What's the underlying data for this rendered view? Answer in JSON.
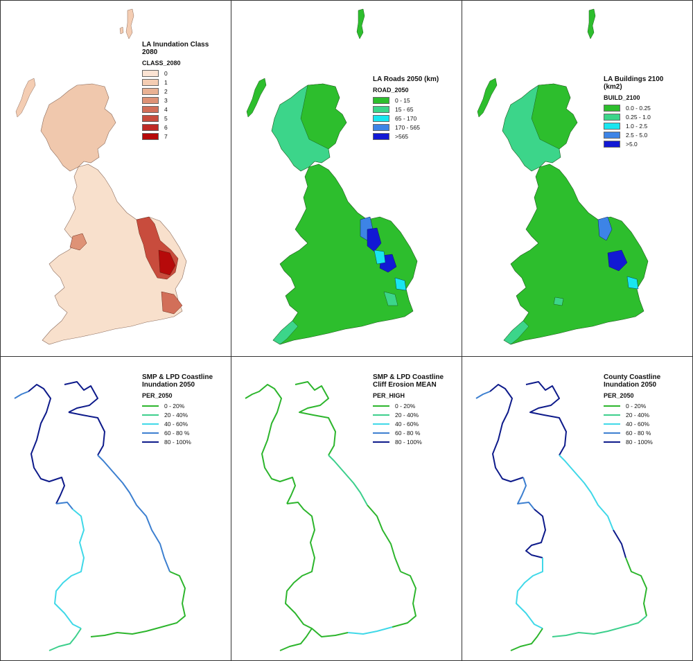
{
  "panels": [
    {
      "id": "la_inundation",
      "title": "LA Inundation Class\n2080",
      "field": "CLASS_2080",
      "legend_type": "fill",
      "items": [
        {
          "label": "0",
          "color": "#fbe3d3"
        },
        {
          "label": "1",
          "color": "#f4cdb3"
        },
        {
          "label": "2",
          "color": "#e9b294"
        },
        {
          "label": "3",
          "color": "#de9276"
        },
        {
          "label": "4",
          "color": "#d26f59"
        },
        {
          "label": "5",
          "color": "#c84c3d"
        },
        {
          "label": "6",
          "color": "#bf2a25"
        },
        {
          "label": "7",
          "color": "#b60a0a"
        }
      ]
    },
    {
      "id": "la_roads",
      "title": "LA Roads 2050 (km)",
      "field": "ROAD_2050",
      "legend_type": "fill",
      "items": [
        {
          "label": "0 - 15",
          "color": "#2dbe2d"
        },
        {
          "label": "15 - 65",
          "color": "#3cd58a"
        },
        {
          "label": "65 - 170",
          "color": "#19e6f0"
        },
        {
          "label": "170 - 565",
          "color": "#3d84e6"
        },
        {
          "label": ">565",
          "color": "#1219d4"
        }
      ]
    },
    {
      "id": "la_buildings",
      "title": "LA Buildings 2100\n(km2)",
      "field": "BUILD_2100",
      "legend_type": "fill",
      "items": [
        {
          "label": "0.0 - 0.25",
          "color": "#2dbe2d"
        },
        {
          "label": "0.25 - 1.0",
          "color": "#3cd58a"
        },
        {
          "label": "1.0 - 2.5",
          "color": "#19e6f0"
        },
        {
          "label": "2.5 - 5.0",
          "color": "#3d84e6"
        },
        {
          "label": ">5.0",
          "color": "#1219d4"
        }
      ]
    },
    {
      "id": "smp_inundation",
      "title": "SMP & LPD Coastline\nInundation 2050",
      "field": "PER_2050",
      "legend_type": "line",
      "items": [
        {
          "label": "0 - 20%",
          "color": "#2cb52c"
        },
        {
          "label": "20 - 40%",
          "color": "#3ccf8c"
        },
        {
          "label": "40 - 60%",
          "color": "#3fd8e8"
        },
        {
          "label": "60 - 80 %",
          "color": "#3c7fd0"
        },
        {
          "label": "80 - 100%",
          "color": "#0d1a8a"
        }
      ]
    },
    {
      "id": "smp_erosion",
      "title": "SMP & LPD Coastline\nCliff Erosion MEAN",
      "field": "PER_HIGH",
      "legend_type": "line",
      "items": [
        {
          "label": "0 - 20%",
          "color": "#2cb52c"
        },
        {
          "label": "20 - 40%",
          "color": "#3ccf8c"
        },
        {
          "label": "40 - 60%",
          "color": "#3fd8e8"
        },
        {
          "label": "60 - 80 %",
          "color": "#3c7fd0"
        },
        {
          "label": "80 - 100%",
          "color": "#0d1a8a"
        }
      ]
    },
    {
      "id": "county_inundation",
      "title": "County Coastline\nInundation 2050",
      "field": "PER_2050",
      "legend_type": "line",
      "items": [
        {
          "label": "0 - 20%",
          "color": "#2cb52c"
        },
        {
          "label": "20 - 40%",
          "color": "#3ccf8c"
        },
        {
          "label": "40 - 60%",
          "color": "#3fd8e8"
        },
        {
          "label": "60 - 80 %",
          "color": "#3c7fd0"
        },
        {
          "label": "80 - 100%",
          "color": "#0d1a8a"
        }
      ]
    }
  ]
}
